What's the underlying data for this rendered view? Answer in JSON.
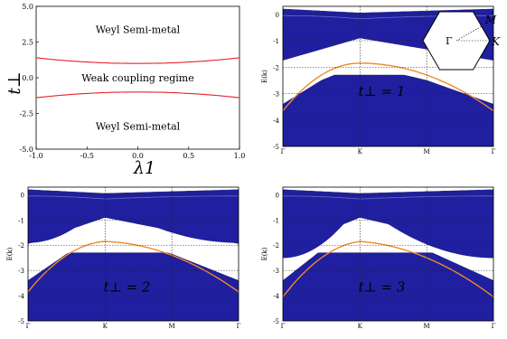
{
  "chart_data": [
    {
      "type": "line",
      "id": "phase-diagram",
      "xlabel": "λ1",
      "ylabel": "t⊥",
      "xlim": [
        -1.0,
        1.0
      ],
      "ylim": [
        -5.0,
        5.0
      ],
      "xticks": [
        "-1.0",
        "-0.5",
        "0.0",
        "0.5",
        "1.0"
      ],
      "xtick_values": [
        -1.0,
        -0.5,
        0.0,
        0.5,
        1.0
      ],
      "yticks": [
        "5.0",
        "2.5",
        "0.0",
        "-2.5",
        "-5.0"
      ],
      "ytick_values": [
        5.0,
        2.5,
        0.0,
        -2.5,
        -5.0
      ],
      "series": [
        {
          "color": "#e8202a",
          "x": [
            -1.0,
            -0.5,
            0.0,
            0.5,
            1.0
          ],
          "y": [
            1.4,
            1.1,
            1.0,
            1.1,
            1.4
          ]
        },
        {
          "color": "#e8202a",
          "x": [
            -1.0,
            -0.5,
            0.0,
            0.5,
            1.0
          ],
          "y": [
            -1.4,
            -1.1,
            -1.0,
            -1.1,
            -1.4
          ]
        }
      ],
      "annotations": [
        {
          "text": "Weyl Semi-metal",
          "x": 0.0,
          "y": 3.4
        },
        {
          "text": "Weak coupling regime",
          "x": 0.0,
          "y": 0.0
        },
        {
          "text": "Weyl Semi-metal",
          "x": 0.0,
          "y": -3.4
        }
      ]
    },
    {
      "type": "area",
      "id": "band-t1",
      "label": "t⊥ = 1",
      "tperp": 1,
      "ylabel": "E(k)",
      "ylim": [
        -5,
        0.3
      ],
      "xticks": [
        "Γ",
        "K",
        "M",
        "Γ"
      ],
      "yticks": [
        "0",
        "-1",
        "-2",
        "-3",
        "-4",
        "-5"
      ],
      "ytick_values": [
        0,
        -1,
        -2,
        -3,
        -4,
        -5
      ],
      "grid": true,
      "inset": {
        "labels": [
          "M",
          "Γ",
          "K"
        ]
      }
    },
    {
      "type": "area",
      "id": "band-t2",
      "label": "t⊥ = 2",
      "tperp": 2,
      "ylabel": "E(k)",
      "ylim": [
        -5,
        0.3
      ],
      "xticks": [
        "Γ",
        "K",
        "M",
        "Γ"
      ],
      "yticks": [
        "0",
        "-1",
        "-2",
        "-3",
        "-4",
        "-5"
      ],
      "ytick_values": [
        0,
        -1,
        -2,
        -3,
        -4,
        -5
      ],
      "grid": true
    },
    {
      "type": "area",
      "id": "band-t3",
      "label": "t⊥ = 3",
      "tperp": 3,
      "ylabel": "E(k)",
      "ylim": [
        -5,
        0.3
      ],
      "xticks": [
        "Γ",
        "K",
        "M",
        "Γ"
      ],
      "yticks": [
        "0",
        "-1",
        "-2",
        "-3",
        "-4",
        "-5"
      ],
      "ytick_values": [
        0,
        -1,
        -2,
        -3,
        -4,
        -5
      ],
      "grid": true
    }
  ],
  "colors": {
    "band_fill": "#1f1fa0",
    "band_edge": "#101070",
    "surface_state": "#f08a24",
    "phase_line": "#e8202a"
  }
}
